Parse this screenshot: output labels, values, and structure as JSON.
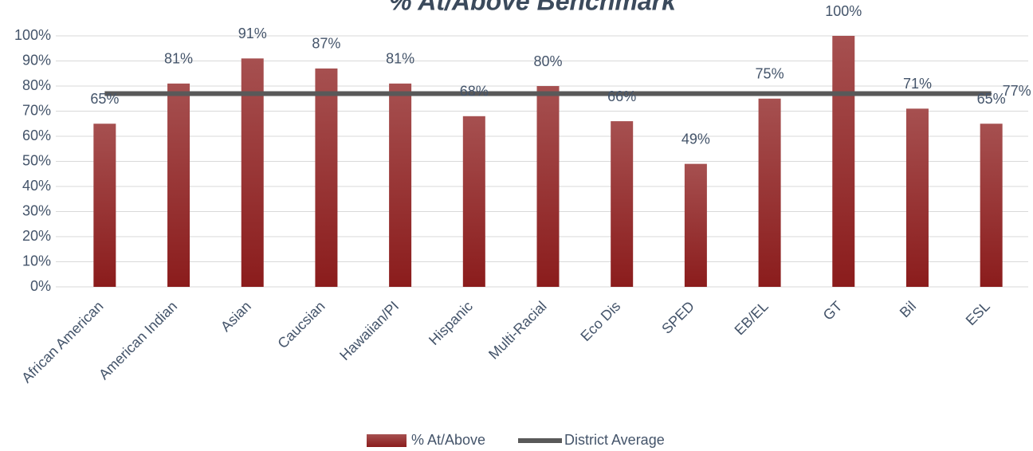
{
  "chart_data": {
    "type": "bar",
    "title": "% At/Above Benchmark",
    "categories": [
      "African American",
      "American Indian",
      "Asian",
      "Caucsian",
      "Hawaiian/PI",
      "Hispanic",
      "Multi-Racial",
      "Eco Dis",
      "SPED",
      "EB/EL",
      "GT",
      "Bil",
      "ESL"
    ],
    "series": [
      {
        "name": "% At/Above",
        "color": "#8b1c1c",
        "values": [
          65,
          81,
          91,
          87,
          81,
          68,
          80,
          66,
          49,
          75,
          100,
          71,
          65
        ],
        "value_labels": [
          "65%",
          "81%",
          "91%",
          "87%",
          "81%",
          "68%",
          "80%",
          "66%",
          "49%",
          "75%",
          "100%",
          "71%",
          "65%"
        ]
      }
    ],
    "reference_line": {
      "name": "District Average",
      "value": 77,
      "label": "77%",
      "color": "#595959"
    },
    "ylim": [
      0,
      100
    ],
    "yticks": [
      {
        "value": 0,
        "label": "0%"
      },
      {
        "value": 10,
        "label": "10%"
      },
      {
        "value": 20,
        "label": "20%"
      },
      {
        "value": 30,
        "label": "30%"
      },
      {
        "value": 40,
        "label": "40%"
      },
      {
        "value": 50,
        "label": "50%"
      },
      {
        "value": 60,
        "label": "60%"
      },
      {
        "value": 70,
        "label": "70%"
      },
      {
        "value": 80,
        "label": "80%"
      },
      {
        "value": 90,
        "label": "90%"
      },
      {
        "value": 100,
        "label": "100%"
      }
    ],
    "grid": true
  }
}
